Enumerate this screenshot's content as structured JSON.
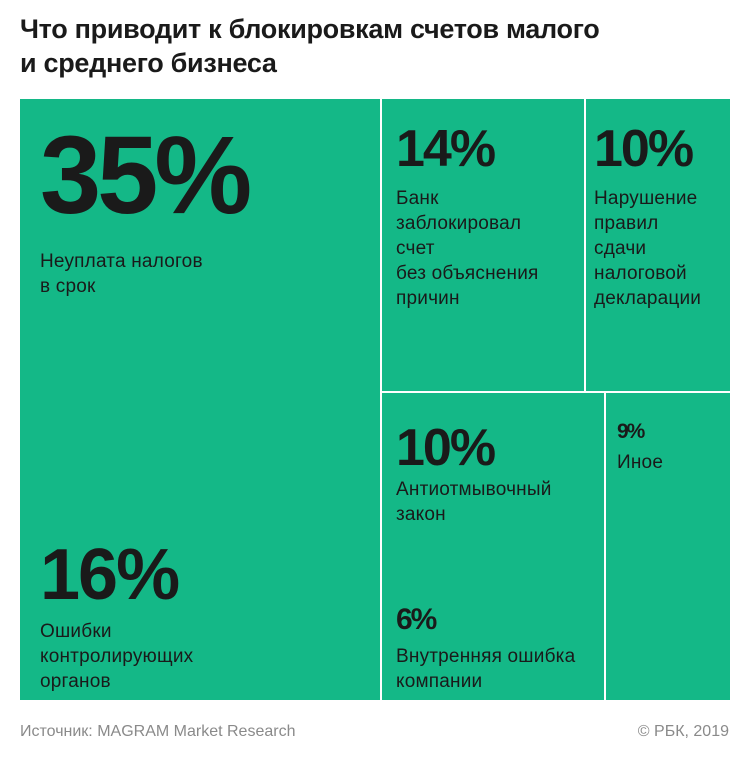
{
  "title": [
    "Что приводит к блокировкам счетов малого",
    "и среднего бизнеса"
  ],
  "colors": {
    "tile": "#14b887",
    "divider": "#ffffff",
    "text": "#1a1a1a",
    "footer": "#8a8a8a"
  },
  "chart_data": {
    "type": "treemap",
    "title": "Что приводит к блокировкам счетов малого и среднего бизнеса",
    "unit": "%",
    "items": [
      {
        "value": 35,
        "pct_label": "35%",
        "label": [
          "Неуплата налогов",
          "в срок"
        ]
      },
      {
        "value": 16,
        "pct_label": "16%",
        "label": [
          "Ошибки",
          "контролирующих",
          "органов"
        ]
      },
      {
        "value": 14,
        "pct_label": "14%",
        "label": [
          "Банк",
          "заблокировал",
          "счет",
          "без объяснения",
          "причин"
        ]
      },
      {
        "value": 10,
        "pct_label": "10%",
        "label": [
          "Нарушение",
          "правил",
          "сдачи",
          "налоговой",
          "декларации"
        ]
      },
      {
        "value": 10,
        "pct_label": "10%",
        "label": [
          "Антиотмывочный",
          "закон"
        ]
      },
      {
        "value": 6,
        "pct_label": "6%",
        "label": [
          "Внутренняя ошибка",
          "компании"
        ]
      },
      {
        "value": 9,
        "pct_label": "9%",
        "label": [
          "Иное"
        ]
      }
    ]
  },
  "footer": {
    "source": "Источник: MAGRAM Market Research",
    "copyright": "© РБК, 2019"
  }
}
